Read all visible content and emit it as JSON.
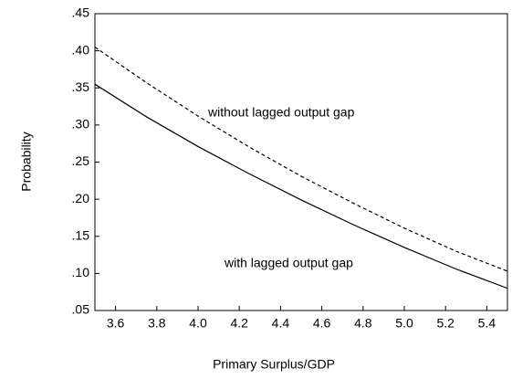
{
  "chart_data": {
    "type": "line",
    "x_label": "Primary Surplus/GDP",
    "y_label": "Probability",
    "x": [
      3.5,
      3.75,
      4.0,
      4.25,
      4.5,
      4.75,
      5.0,
      5.25,
      5.5
    ],
    "series": [
      {
        "name": "without lagged output gap",
        "color": "#000000",
        "dashed": true,
        "values": [
          0.405,
          0.357,
          0.312,
          0.27,
          0.231,
          0.195,
          0.161,
          0.13,
          0.103
        ]
      },
      {
        "name": "with lagged output gap",
        "color": "#000000",
        "dashed": false,
        "values": [
          0.355,
          0.311,
          0.271,
          0.234,
          0.199,
          0.166,
          0.135,
          0.106,
          0.08
        ]
      }
    ],
    "xlim": [
      3.5,
      5.5
    ],
    "ylim": [
      0.05,
      0.45
    ],
    "xticks": [
      3.6,
      3.8,
      {
        "value": 4.0,
        "label": "4.0"
      },
      4.2,
      4.4,
      4.6,
      4.8,
      {
        "value": 5.0,
        "label": "5.0"
      },
      5.2,
      5.4
    ],
    "yticks": [
      {
        "value": 0.05,
        "label": ".05"
      },
      {
        "value": 0.1,
        "label": ".10"
      },
      {
        "value": 0.15,
        "label": ".15"
      },
      {
        "value": 0.2,
        "label": ".20"
      },
      {
        "value": 0.25,
        "label": ".25"
      },
      {
        "value": 0.3,
        "label": ".30"
      },
      {
        "value": 0.35,
        "label": ".35"
      },
      {
        "value": 0.4,
        "label": ".40"
      },
      {
        "value": 0.45,
        "label": ".45"
      }
    ],
    "grid": false
  }
}
